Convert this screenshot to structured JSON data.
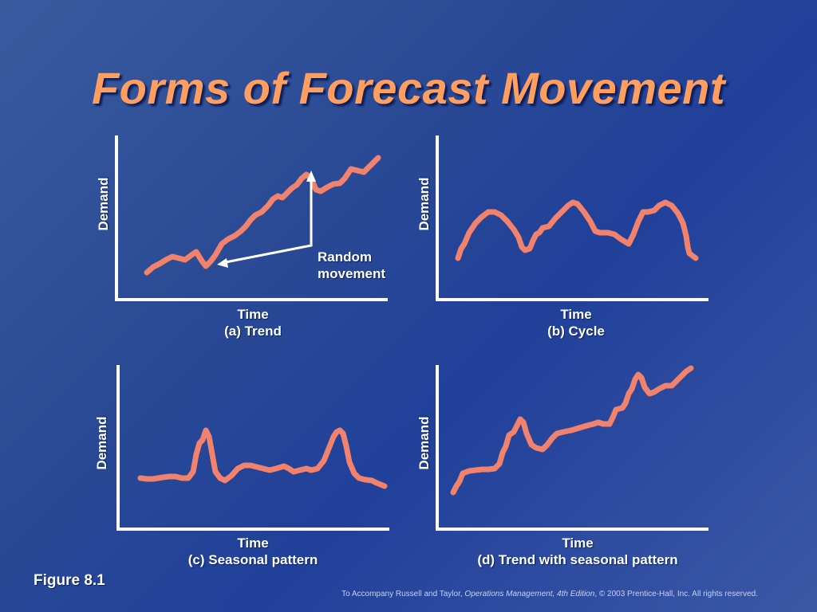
{
  "slide": {
    "title": "Forms of Forecast Movement",
    "figure_label": "Figure 8.1",
    "footer_prefix": "To Accompany Russell and Taylor, ",
    "footer_book": "Operations Management, 4th Edition",
    "footer_suffix": ", © 2003 Prentice-Hall, Inc. All rights reserved."
  },
  "colors": {
    "title": "#ff9e5e",
    "curve": "#f2826c",
    "axes": "#ffffff"
  },
  "panels": [
    {
      "y_label": "Demand",
      "time_label": "Time",
      "caption": "(a) Trend",
      "annotation_line1": "Random",
      "annotation_line2": "movement"
    },
    {
      "y_label": "Demand",
      "time_label": "Time",
      "caption": "(b) Cycle"
    },
    {
      "y_label": "Demand",
      "time_label": "Time",
      "caption": "(c) Seasonal pattern"
    },
    {
      "y_label": "Demand",
      "time_label": "Time",
      "caption": "(d) Trend with seasonal pattern"
    }
  ]
}
